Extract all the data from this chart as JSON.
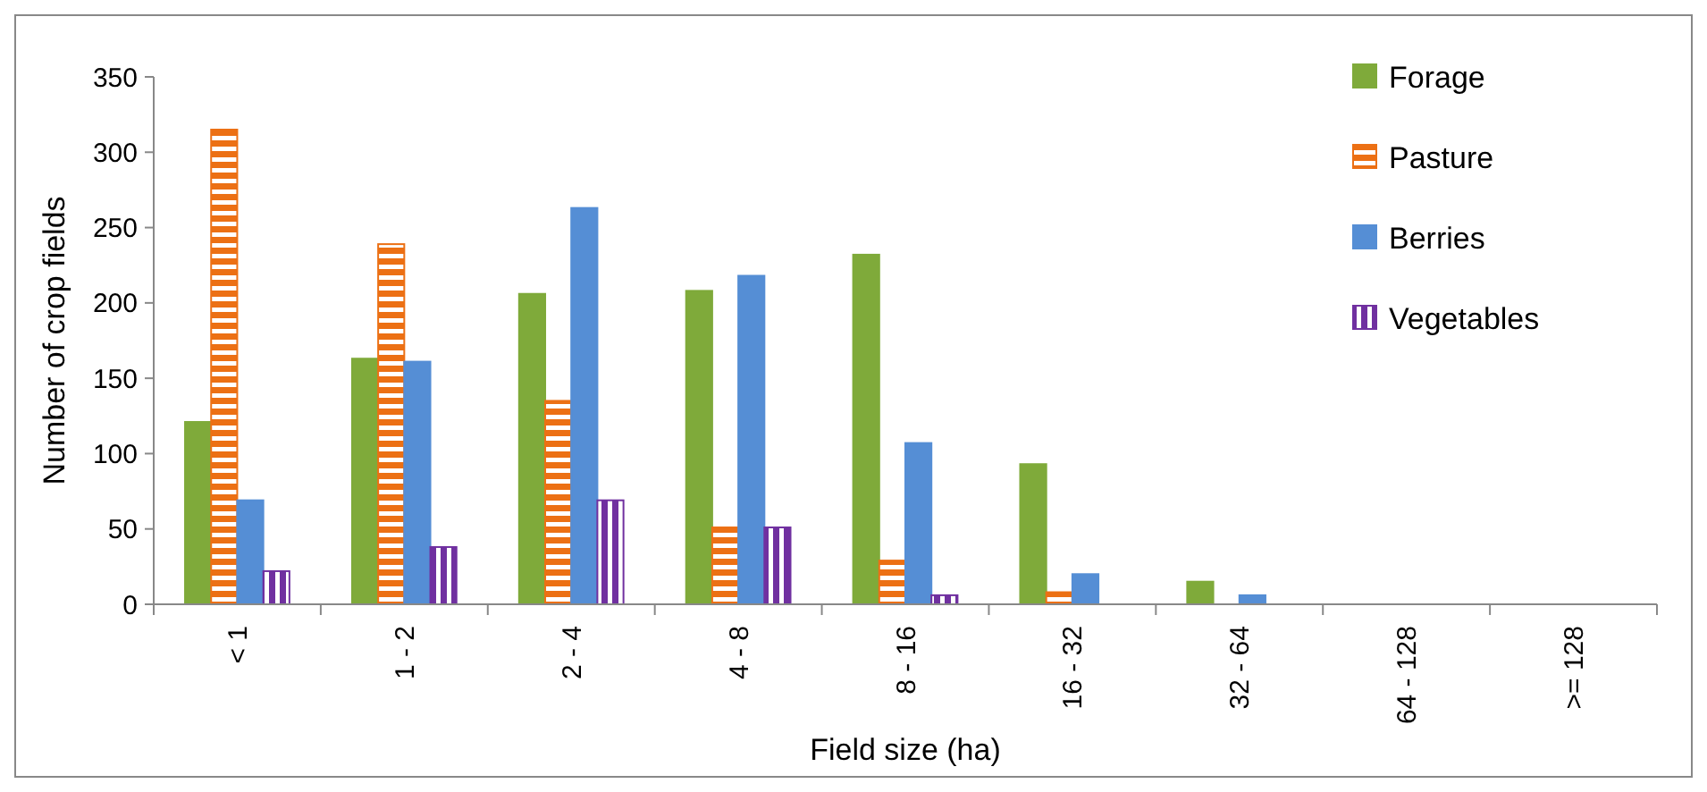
{
  "chart_data": {
    "type": "bar",
    "xlabel": "Field size (ha)",
    "ylabel": "Number of crop fields",
    "categories": [
      "< 1",
      "1 - 2",
      "2 - 4",
      "4 - 8",
      "8 - 16",
      "16 - 32",
      "32 - 64",
      "64 - 128",
      ">= 128"
    ],
    "series": [
      {
        "name": "Forage",
        "color": "#7faa3a",
        "values": [
          121,
          163,
          206,
          208,
          232,
          93,
          15,
          0,
          0
        ]
      },
      {
        "name": "Pasture",
        "color": "#ec7014",
        "values": [
          315,
          239,
          135,
          51,
          29,
          8,
          0,
          0,
          0
        ]
      },
      {
        "name": "Berries",
        "color": "#558ed5",
        "values": [
          69,
          161,
          263,
          218,
          107,
          20,
          6,
          0,
          0
        ]
      },
      {
        "name": "Vegetables",
        "color": "#7030a0",
        "values": [
          22,
          38,
          69,
          51,
          6,
          0,
          0,
          0,
          0
        ]
      }
    ],
    "ylim": [
      0,
      350
    ],
    "yticks": [
      0,
      50,
      100,
      150,
      200,
      250,
      300,
      350
    ],
    "grid": false,
    "legend": "top right"
  }
}
